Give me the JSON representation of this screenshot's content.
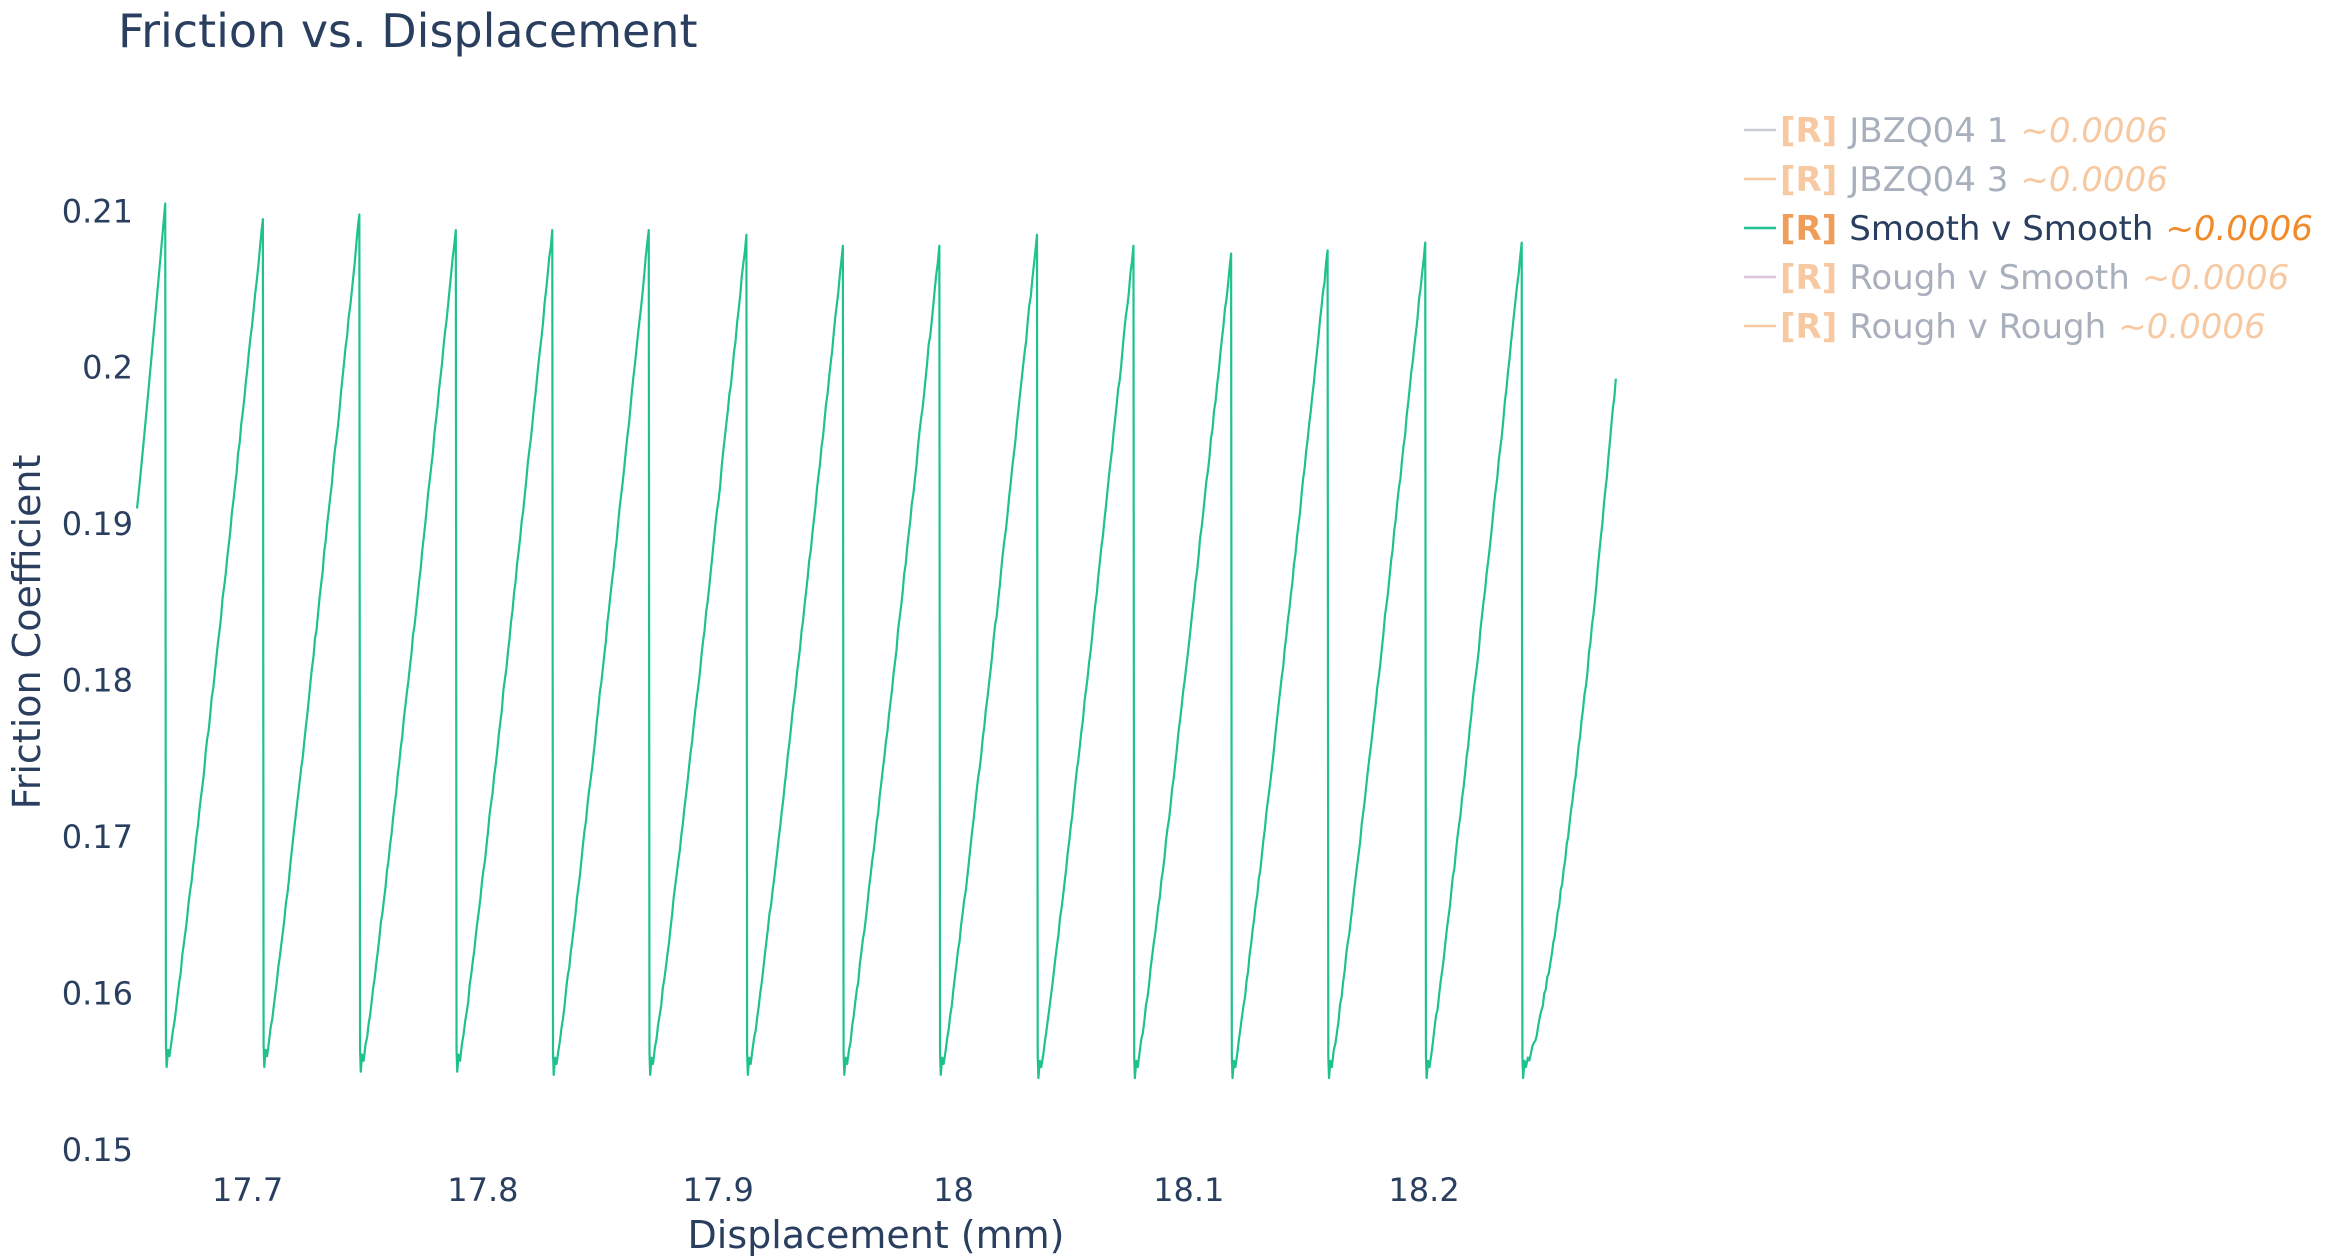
{
  "chart_data": {
    "type": "line",
    "title": "Friction vs. Displacement",
    "xlabel": "Displacement (mm)",
    "ylabel": "Friction Coefficient",
    "xlim": [
      17.653,
      18.282
    ],
    "ylim": [
      0.15,
      0.212
    ],
    "x_ticks": [
      {
        "value": 17.7,
        "label": "17.7"
      },
      {
        "value": 17.8,
        "label": "17.8"
      },
      {
        "value": 17.9,
        "label": "17.9"
      },
      {
        "value": 18.0,
        "label": "18"
      },
      {
        "value": 18.1,
        "label": "18.1"
      },
      {
        "value": 18.2,
        "label": "18.2"
      }
    ],
    "y_ticks": [
      {
        "value": 0.15,
        "label": "0.15"
      },
      {
        "value": 0.16,
        "label": "0.16"
      },
      {
        "value": 0.17,
        "label": "0.17"
      },
      {
        "value": 0.18,
        "label": "0.18"
      },
      {
        "value": 0.19,
        "label": "0.19"
      },
      {
        "value": 0.2,
        "label": "0.2"
      },
      {
        "value": 0.21,
        "label": "0.21"
      }
    ],
    "grid": false,
    "legend_position": "top-right",
    "series": [
      {
        "name": "JBZQ04 1",
        "prefix": "[R]",
        "suffix": "~0.0006",
        "color": "#c9cdd6",
        "active": false,
        "points": []
      },
      {
        "name": "JBZQ04 3",
        "prefix": "[R]",
        "suffix": "~0.0006",
        "color": "#f7c9a3",
        "active": false,
        "points": []
      },
      {
        "name": "Smooth v Smooth",
        "prefix": "[R]",
        "suffix": "~0.0006",
        "color": "#1fc28f",
        "active": true,
        "start": {
          "x": 17.653,
          "y": 0.191
        },
        "cycles": [
          {
            "peak_x": 17.665,
            "peak": 0.2105,
            "trough": 0.1555
          },
          {
            "peak_x": 17.7065,
            "peak": 0.2095,
            "trough": 0.1555
          },
          {
            "peak_x": 17.7475,
            "peak": 0.2098,
            "trough": 0.1552
          },
          {
            "peak_x": 17.7885,
            "peak": 0.2088,
            "trough": 0.1552
          },
          {
            "peak_x": 17.8295,
            "peak": 0.2088,
            "trough": 0.155
          },
          {
            "peak_x": 17.8705,
            "peak": 0.2088,
            "trough": 0.155
          },
          {
            "peak_x": 17.912,
            "peak": 0.2085,
            "trough": 0.155
          },
          {
            "peak_x": 17.953,
            "peak": 0.2078,
            "trough": 0.155
          },
          {
            "peak_x": 17.994,
            "peak": 0.2078,
            "trough": 0.155
          },
          {
            "peak_x": 18.0355,
            "peak": 0.2085,
            "trough": 0.1548
          },
          {
            "peak_x": 18.0765,
            "peak": 0.2078,
            "trough": 0.1548
          },
          {
            "peak_x": 18.118,
            "peak": 0.2073,
            "trough": 0.1548
          },
          {
            "peak_x": 18.159,
            "peak": 0.2075,
            "trough": 0.1548
          },
          {
            "peak_x": 18.2005,
            "peak": 0.208,
            "trough": 0.1548
          },
          {
            "peak_x": 18.2415,
            "peak": 0.208,
            "trough": 0.1548
          }
        ],
        "end": {
          "x": 18.2815,
          "y": 0.1993
        }
      },
      {
        "name": "Rough v Smooth",
        "prefix": "[R]",
        "suffix": "~0.0006",
        "color": "#d9c4dc",
        "active": false,
        "points": []
      },
      {
        "name": "Rough v Rough",
        "prefix": "[R]",
        "suffix": "~0.0006",
        "color": "#f7c9a3",
        "active": false,
        "points": []
      }
    ]
  },
  "colors": {
    "text": "#2a3f5f",
    "legend_inactive_text": "#a8b0bd",
    "prefix_active": "#ef9d58",
    "prefix_inactive": "#f7c9a3",
    "suffix_active": "#f08a2a",
    "suffix_inactive": "#f7c9a3"
  }
}
